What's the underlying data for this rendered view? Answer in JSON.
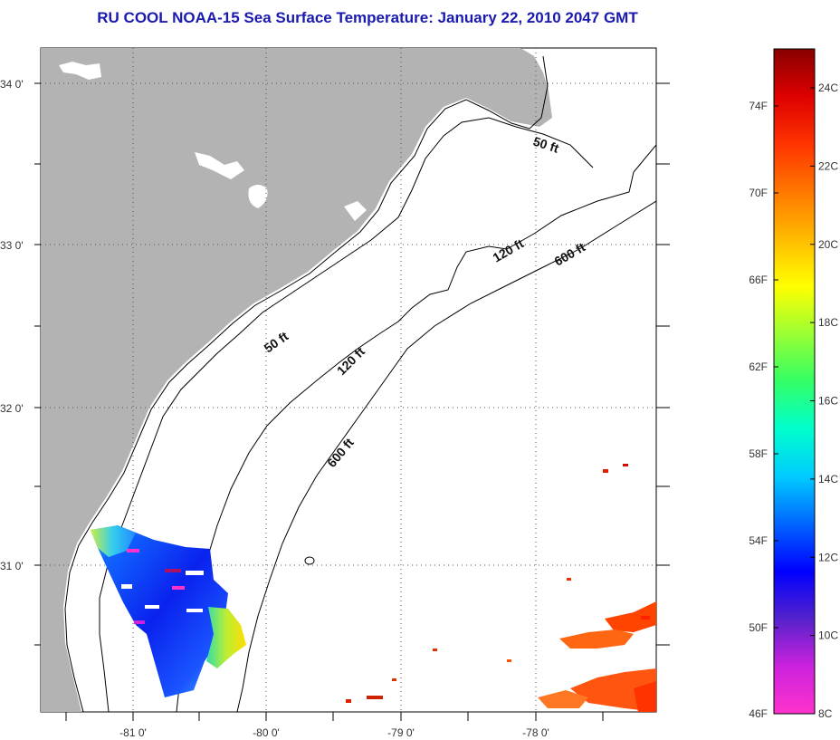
{
  "title": "RU COOL  NOAA-15  Sea Surface Temperature:  January 22, 2010 2047 GMT",
  "map": {
    "lon_range": [
      -81.6,
      -77.1
    ],
    "lat_range": [
      30.2,
      34.2
    ],
    "lat_ticks": [
      {
        "value": 34.0,
        "label": "34 0'"
      },
      {
        "value": 33.0,
        "label": "33 0'"
      },
      {
        "value": 32.0,
        "label": "32 0'"
      },
      {
        "value": 31.0,
        "label": "31 0'"
      }
    ],
    "lon_ticks": [
      {
        "value": -81.0,
        "label": "-81 0'"
      },
      {
        "value": -80.0,
        "label": "-80 0'"
      },
      {
        "value": -79.0,
        "label": "-79 0'"
      },
      {
        "value": -78.0,
        "label": "-78 0'"
      }
    ],
    "grid": "dotted",
    "land_color": "#b3b3b3",
    "water_color": "#ffffff",
    "isobath_labels": [
      "50 ft",
      "50 ft",
      "120 ft",
      "120 ft",
      "600 ft",
      "600 ft"
    ]
  },
  "colorbar": {
    "fahrenheit_labels": [
      "74F",
      "70F",
      "66F",
      "62F",
      "58F",
      "54F",
      "50F",
      "46F"
    ],
    "celsius_labels": [
      "24C",
      "22C",
      "20C",
      "18C",
      "16C",
      "14C",
      "12C",
      "10C",
      "8C"
    ],
    "colors": [
      "#ff33cc",
      "#cc22dd",
      "#5522cc",
      "#0000ff",
      "#0066ff",
      "#00ccff",
      "#00ffcc",
      "#33ff66",
      "#99ff33",
      "#ffff00",
      "#ffbb00",
      "#ff7700",
      "#ff3300",
      "#dd0000",
      "#880000"
    ]
  }
}
